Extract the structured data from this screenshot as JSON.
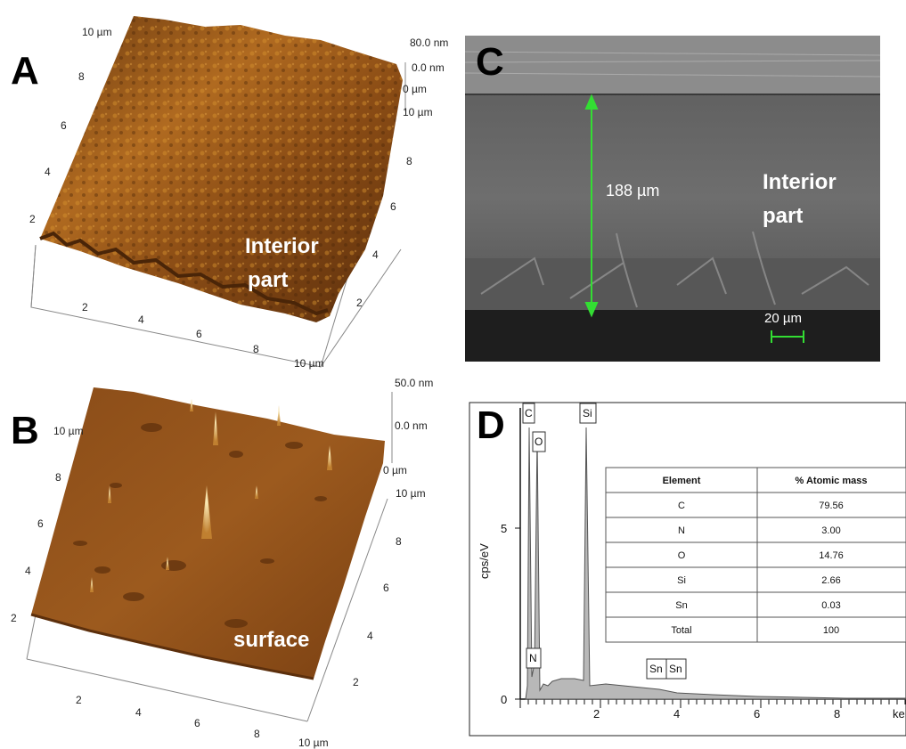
{
  "panels": {
    "A": {
      "letter": "A",
      "label_line1": "Interior",
      "label_line2": "part",
      "z_top": "80.0 nm",
      "z_zero": "0.0 nm",
      "z_origin": "0 µm",
      "y_ticks": [
        "10 µm",
        "8",
        "6",
        "4",
        "2"
      ],
      "x_ticks": [
        "2",
        "4",
        "6",
        "8",
        "10 µm"
      ],
      "r_ticks": [
        "10 µm",
        "8",
        "6",
        "4",
        "2"
      ]
    },
    "B": {
      "letter": "B",
      "label": "surface",
      "z_top": "50.0 nm",
      "z_zero": "0.0 nm",
      "z_origin": "0 µm",
      "y_ticks": [
        "10 µm",
        "8",
        "6",
        "4",
        "2"
      ],
      "x_ticks": [
        "2",
        "4",
        "6",
        "8",
        "10 µm"
      ],
      "r_ticks": [
        "10 µm",
        "8",
        "6",
        "4",
        "2"
      ]
    },
    "C": {
      "letter": "C",
      "thickness": "188 µm",
      "label_line1": "Interior",
      "label_line2": "part",
      "scale_bar": "20 µm"
    },
    "D": {
      "letter": "D",
      "ylabel": "cps/eV",
      "y_ticks": [
        "5",
        "0"
      ],
      "x_ticks": [
        "2",
        "4",
        "6",
        "8",
        "ke"
      ],
      "peaks": [
        "C",
        "O",
        "Si",
        "N",
        "Sn",
        "Sn"
      ],
      "table": {
        "headers": [
          "Element",
          "% Atomic mass"
        ],
        "rows": [
          [
            "C",
            "79.56"
          ],
          [
            "N",
            "3.00"
          ],
          [
            "O",
            "14.76"
          ],
          [
            "Si",
            "2.66"
          ],
          [
            "Sn",
            "0.03"
          ],
          [
            "Total",
            "100"
          ]
        ]
      }
    }
  }
}
